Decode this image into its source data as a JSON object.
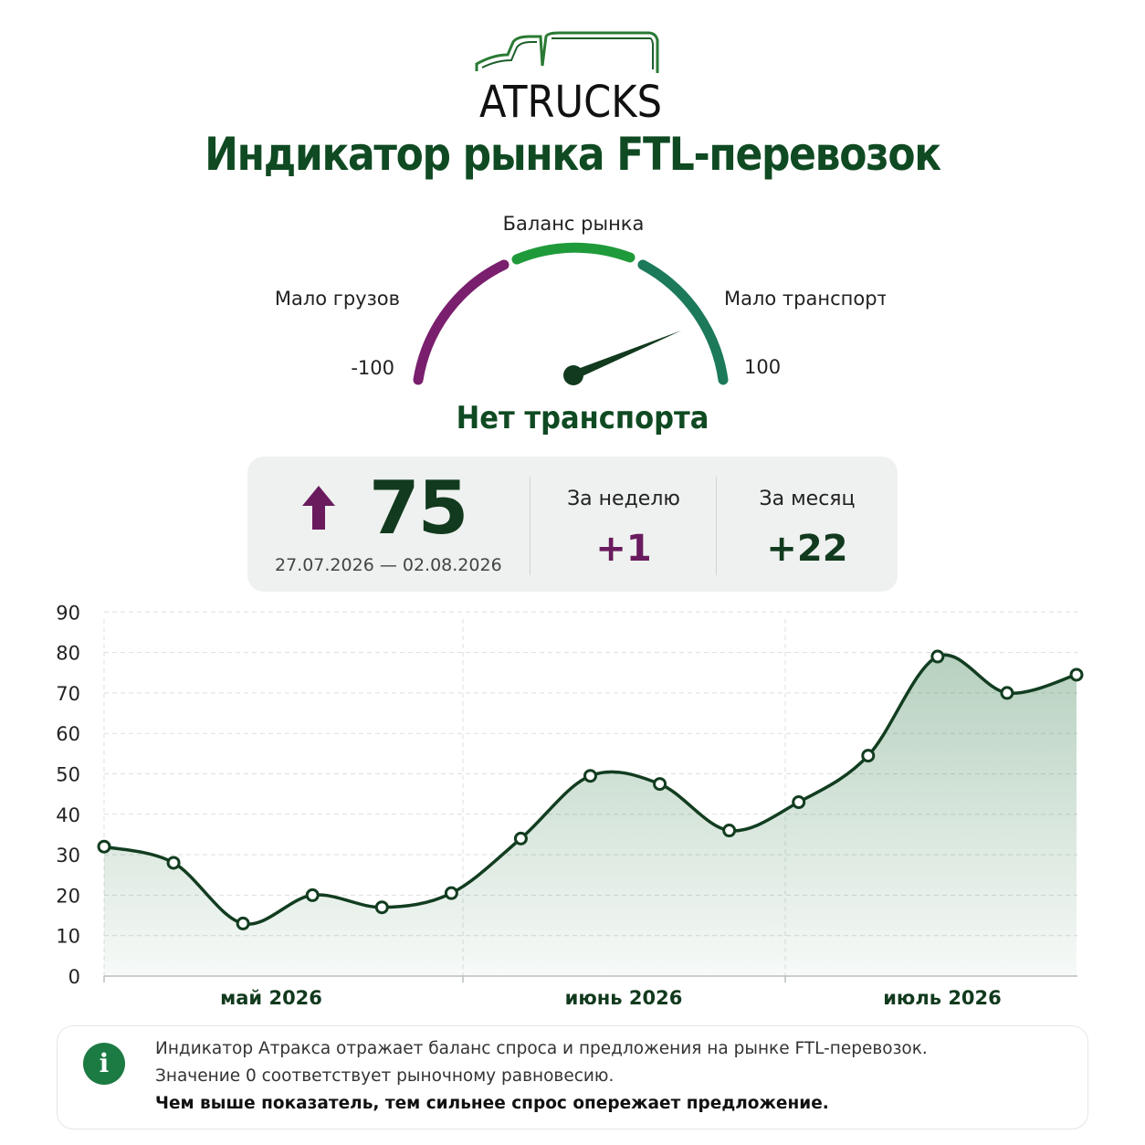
{
  "brand": {
    "logo_text": "ATRUCKS"
  },
  "title": "Индикатор рынка FTL-перевозок",
  "gauge": {
    "label_center": "Баланс рынка",
    "label_left": "Мало грузов",
    "label_right": "Мало транспорта",
    "min_label": "-100",
    "max_label": "100",
    "min": -100,
    "max": 100,
    "value": 75,
    "colors": {
      "left": "#7a1f6e",
      "center": "#1f9a3a",
      "right": "#1c7a5a",
      "needle": "#123a1e"
    }
  },
  "status": "Нет транспорта",
  "stats": {
    "index_value": "75",
    "trend_icon": "arrow-up-icon",
    "period": "27.07.2026 — 02.08.2026",
    "week_label": "За неделю",
    "week_value": "+1",
    "month_label": "За месяц",
    "month_value": "+22",
    "colors": {
      "week": "#6a1b5e",
      "month": "#123a1e",
      "arrow": "#6a1b5e"
    }
  },
  "chart_data": {
    "type": "area",
    "x_labels": [
      "май 2026",
      "июнь 2026",
      "июль 2026"
    ],
    "y_ticks": [
      0,
      10,
      20,
      30,
      40,
      50,
      60,
      70,
      80,
      90
    ],
    "ylim": [
      0,
      90
    ],
    "grid": true,
    "values": [
      32,
      28,
      13,
      20,
      17,
      20.5,
      34,
      49.5,
      47.5,
      36,
      43,
      54.5,
      79,
      70,
      74.5
    ],
    "colors": {
      "line": "#123d20",
      "fill": "#2f7a48"
    }
  },
  "info": {
    "icon": "info-icon",
    "line1": "Индикатор Атракса отражает баланс спроса и предложения на рынке FTL-перевозок.",
    "line2": "Значение 0 соответствует рыночному равновесию.",
    "line3": "Чем выше показатель, тем сильнее спрос опережает предложение."
  }
}
